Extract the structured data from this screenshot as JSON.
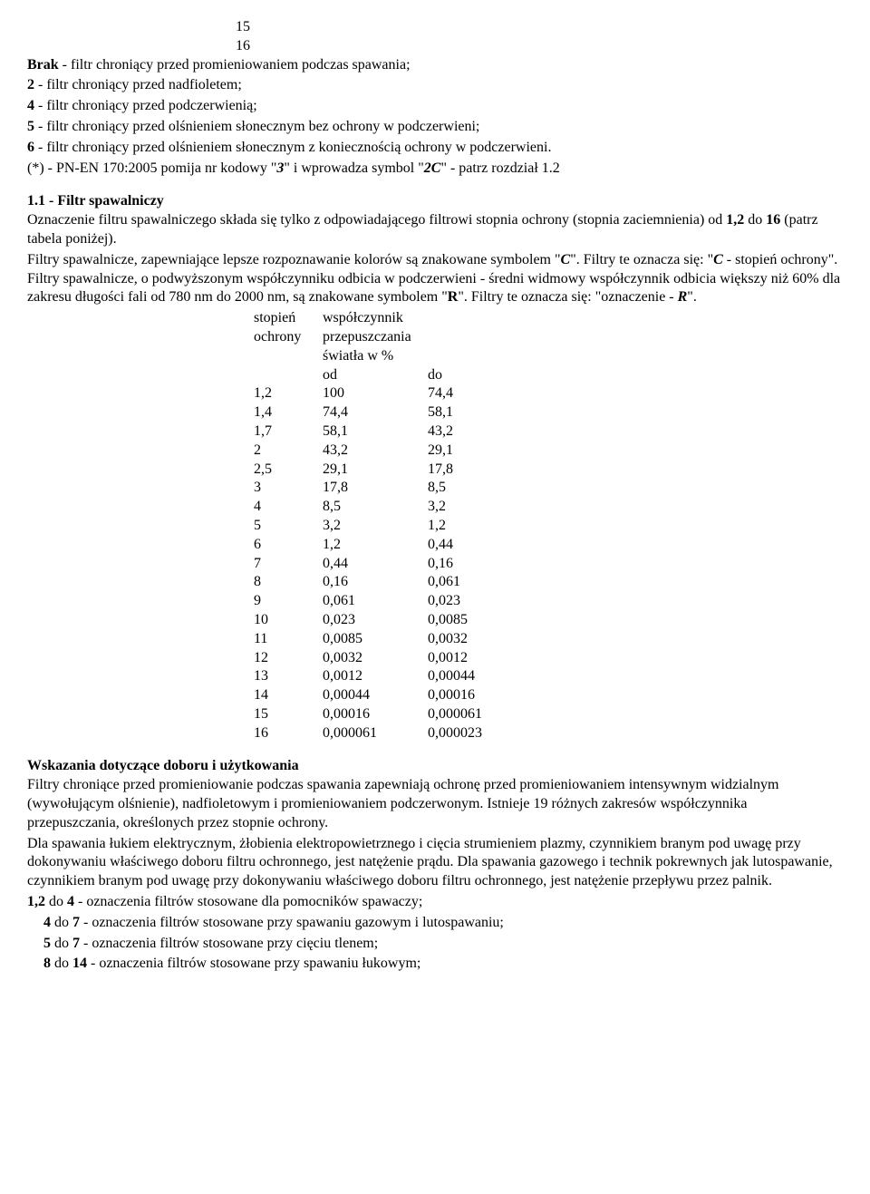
{
  "top_numbers": {
    "a": "15",
    "b": "16"
  },
  "intro": {
    "l1_bold": "Brak",
    "l1_rest": " - filtr chroniący przed promieniowaniem podczas spawania;",
    "l2_bold": "2",
    "l2_rest": " - filtr chroniący przed nadfioletem;",
    "l3_bold": "4",
    "l3_rest": " - filtr chroniący przed podczerwienią;",
    "l4_bold": "5",
    "l4_rest": " - filtr chroniący przed olśnieniem słonecznym bez ochrony w podczerwieni;",
    "l5_bold": "6",
    "l5_rest": " - filtr chroniący przed olśnieniem słonecznym z koniecznością ochrony w podczerwieni.",
    "l6a": "(*) - PN-EN 170:2005 pomija nr kodowy \"",
    "l6_b1": "3",
    "l6b": "\" i wprowadza symbol \"",
    "l6_b2": "2C",
    "l6c": "\" - patrz rozdział 1.2"
  },
  "section1": {
    "heading": "1.1 - Filtr spawalniczy",
    "p1a": "Oznaczenie filtru spawalniczego składa się tylko z odpowiadającego filtrowi stopnia ochrony (stopnia zaciemnienia) od ",
    "p1_b1": "1,2",
    "p1b": " do ",
    "p1_b2": "16",
    "p1c": " (patrz tabela poniżej).",
    "p2a": "Filtry spawalnicze, zapewniające lepsze rozpoznawanie kolorów są znakowane symbolem \"",
    "p2_b1": "C",
    "p2b": "\". Filtry te oznacza się: \"",
    "p2_b2": "C",
    "p2c": " - stopień ochrony\". Filtry spawalnicze, o podwyższonym współczynniku odbicia w podczerwieni - średni widmowy współczynnik odbicia większy niż 60% dla zakresu długości fali od 780 nm do 2000 nm, są znakowane symbolem \"",
    "p2_b3": "R",
    "p2d": "\". Filtry te oznacza się: \"oznaczenie - ",
    "p2_b4": "R",
    "p2e": "\"."
  },
  "table": {
    "header_left1": "stopień",
    "header_left2": "ochrony",
    "header_right1": "współczynnik",
    "header_right2": "przepuszczania",
    "header_right3": "światła w %",
    "sub_od": "od",
    "sub_do": "do",
    "rows": [
      {
        "s": "1,2",
        "od": "100",
        "do": "74,4"
      },
      {
        "s": "1,4",
        "od": "74,4",
        "do": "58,1"
      },
      {
        "s": "1,7",
        "od": "58,1",
        "do": "43,2"
      },
      {
        "s": "2",
        "od": "43,2",
        "do": "29,1"
      },
      {
        "s": "2,5",
        "od": "29,1",
        "do": "17,8"
      },
      {
        "s": "3",
        "od": "17,8",
        "do": "8,5"
      },
      {
        "s": "4",
        "od": "8,5",
        "do": "3,2"
      },
      {
        "s": "5",
        "od": "3,2",
        "do": "1,2"
      },
      {
        "s": "6",
        "od": "1,2",
        "do": "0,44"
      },
      {
        "s": "7",
        "od": "0,44",
        "do": "0,16"
      },
      {
        "s": "8",
        "od": "0,16",
        "do": "0,061"
      },
      {
        "s": "9",
        "od": "0,061",
        "do": "0,023"
      },
      {
        "s": "10",
        "od": "0,023",
        "do": "0,0085"
      },
      {
        "s": "11",
        "od": "0,0085",
        "do": "0,0032"
      },
      {
        "s": "12",
        "od": "0,0032",
        "do": "0,0012"
      },
      {
        "s": "13",
        "od": "0,0012",
        "do": "0,00044"
      },
      {
        "s": "14",
        "od": "0,00044",
        "do": "0,00016"
      },
      {
        "s": "15",
        "od": "0,00016",
        "do": "0,000061"
      },
      {
        "s": "16",
        "od": "0,000061",
        "do": "0,000023"
      }
    ]
  },
  "section2": {
    "heading": "Wskazania dotyczące doboru i użytkowania",
    "p1": "Filtry chroniące przed promieniowanie podczas spawania zapewniają ochronę przed promieniowaniem intensywnym widzialnym (wywołującym olśnienie), nadfioletowym i promieniowaniem podczerwonym. Istnieje 19 różnych zakresów współczynnika przepuszczania, określonych przez stopnie ochrony.",
    "p2": "Dla spawania łukiem elektrycznym, żłobienia elektropowietrznego i cięcia strumieniem plazmy, czynnikiem branym pod uwagę przy dokonywaniu właściwego doboru filtru ochronnego, jest natężenie prądu. Dla spawania gazowego i technik pokrewnych jak lutospawanie, czynnikiem branym pod uwagę przy dokonywaniu właściwego doboru filtru ochronnego, jest natężenie przepływu przez palnik.",
    "i1_a": "1,2",
    "i1_b": " do ",
    "i1_c": "  4",
    "i1_d": " - oznaczenia filtrów stosowane dla pomocników spawaczy;",
    "i2_a": "4",
    "i2_b": " do ",
    "i2_c": "  7",
    "i2_d": " - oznaczenia filtrów stosowane przy spawaniu gazowym i lutospawaniu;",
    "i3_a": "5",
    "i3_b": " do ",
    "i3_c": "  7",
    "i3_d": " - oznaczenia filtrów stosowane przy cięciu tlenem;",
    "i4_a": "8",
    "i4_b": " do ",
    "i4_c": "14",
    "i4_d": " - oznaczenia filtrów stosowane przy spawaniu łukowym;"
  }
}
